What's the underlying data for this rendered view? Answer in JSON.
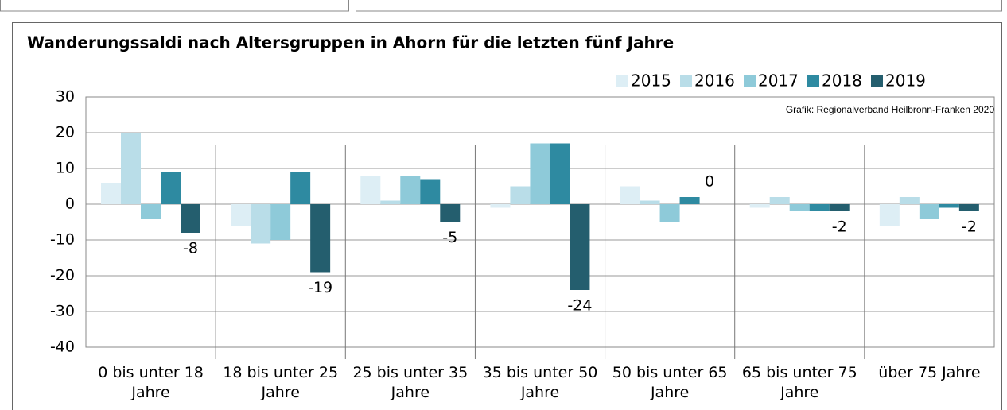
{
  "chart_data": {
    "type": "bar",
    "title": "Wanderungssaldi nach Altersgruppen in Ahorn für die letzten fünf Jahre",
    "annotation": "Grafik: Regionalverband Heilbronn-Franken 2020",
    "categories": [
      "0 bis unter 18 Jahre",
      "18 bis unter 25 Jahre",
      "25 bis unter 35 Jahre",
      "35 bis unter 50 Jahre",
      "50 bis unter 65 Jahre",
      "65 bis unter 75 Jahre",
      "über 75 Jahre"
    ],
    "series": [
      {
        "name": "2015",
        "color": "#ddeef5",
        "values": [
          6,
          -6,
          8,
          -1,
          5,
          -1,
          -6
        ]
      },
      {
        "name": "2016",
        "color": "#b9dde8",
        "values": [
          20,
          -11,
          1,
          5,
          1,
          2,
          2
        ]
      },
      {
        "name": "2017",
        "color": "#8ecad9",
        "values": [
          -4,
          -10,
          8,
          17,
          -5,
          -2,
          -4
        ]
      },
      {
        "name": "2018",
        "color": "#2e8aa1",
        "values": [
          9,
          9,
          7,
          17,
          2,
          -2,
          -1
        ]
      },
      {
        "name": "2019",
        "color": "#245e6e",
        "values": [
          -8,
          -19,
          -5,
          -24,
          0,
          -2,
          -2
        ]
      }
    ],
    "labeled_series": 4,
    "ylim": [
      -40,
      30
    ],
    "yticks": [
      -40,
      -30,
      -20,
      -10,
      0,
      10,
      20,
      30
    ],
    "grid": true,
    "legend": "top-right"
  }
}
